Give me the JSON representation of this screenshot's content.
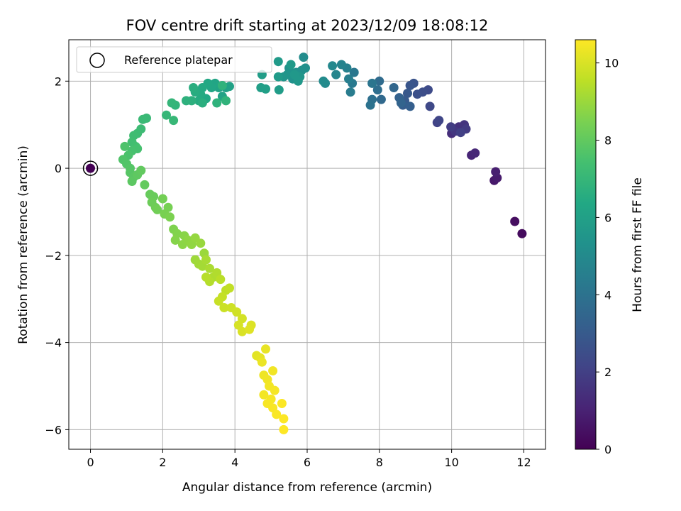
{
  "chart_data": {
    "type": "scatter",
    "title": "FOV centre drift starting at 2023/12/09 18:08:12",
    "xlabel": "Angular distance from reference (arcmin)",
    "ylabel": "Rotation from reference (arcmin)",
    "xlim": [
      -0.6,
      12.6
    ],
    "ylim": [
      -6.45,
      2.95
    ],
    "xticks": [
      0,
      2,
      4,
      6,
      8,
      10,
      12
    ],
    "yticks": [
      -6,
      -4,
      -2,
      0,
      2
    ],
    "grid": true,
    "legend": {
      "position": "top-left",
      "entries": [
        "Reference platepar"
      ]
    },
    "reference_point": {
      "x": 0,
      "y": 0
    },
    "colorbar": {
      "label": "Hours from first FF file",
      "colormap": "viridis",
      "range": [
        0,
        10.6
      ],
      "ticks": [
        0,
        2,
        4,
        6,
        8,
        10
      ]
    },
    "points": [
      [
        0,
        0,
        0.0
      ],
      [
        11.95,
        -1.5,
        0.3
      ],
      [
        11.75,
        -1.22,
        0.4
      ],
      [
        11.18,
        -0.28,
        0.7
      ],
      [
        11.26,
        -0.22,
        0.8
      ],
      [
        11.22,
        -0.08,
        0.9
      ],
      [
        10.55,
        0.3,
        1.1
      ],
      [
        10.65,
        0.35,
        1.2
      ],
      [
        10.0,
        0.8,
        1.4
      ],
      [
        10.2,
        0.95,
        1.5
      ],
      [
        10.35,
        1.0,
        1.6
      ],
      [
        10.1,
        0.85,
        1.7
      ],
      [
        10.4,
        0.9,
        1.8
      ],
      [
        9.98,
        0.95,
        1.9
      ],
      [
        10.25,
        0.82,
        2.0
      ],
      [
        9.6,
        1.05,
        2.1
      ],
      [
        9.65,
        1.1,
        2.2
      ],
      [
        9.4,
        1.42,
        2.3
      ],
      [
        9.35,
        1.8,
        2.4
      ],
      [
        9.2,
        1.75,
        2.5
      ],
      [
        9.05,
        1.7,
        2.6
      ],
      [
        8.95,
        1.95,
        2.7
      ],
      [
        8.85,
        1.9,
        2.8
      ],
      [
        8.78,
        1.72,
        2.9
      ],
      [
        8.7,
        1.55,
        3.0
      ],
      [
        8.65,
        1.45,
        3.1
      ],
      [
        8.85,
        1.42,
        3.2
      ],
      [
        8.55,
        1.62,
        3.3
      ],
      [
        8.6,
        1.5,
        3.4
      ],
      [
        8.4,
        1.85,
        3.5
      ],
      [
        8.05,
        1.58,
        3.6
      ],
      [
        8.0,
        2.0,
        3.7
      ],
      [
        7.95,
        1.8,
        3.8
      ],
      [
        7.8,
        1.58,
        3.9
      ],
      [
        7.75,
        1.45,
        4.0
      ],
      [
        7.8,
        1.95,
        4.1
      ],
      [
        7.3,
        2.2,
        4.2
      ],
      [
        7.25,
        1.95,
        4.3
      ],
      [
        7.2,
        1.75,
        4.4
      ],
      [
        7.15,
        2.05,
        4.5
      ],
      [
        7.1,
        2.3,
        4.6
      ],
      [
        6.95,
        2.38,
        4.7
      ],
      [
        6.8,
        2.15,
        4.8
      ],
      [
        6.7,
        2.35,
        4.9
      ],
      [
        6.5,
        1.95,
        5.0
      ],
      [
        6.45,
        2.0,
        5.05
      ],
      [
        5.9,
        2.55,
        5.1
      ],
      [
        5.95,
        2.3,
        5.2
      ],
      [
        5.85,
        2.25,
        5.25
      ],
      [
        5.7,
        2.2,
        5.3
      ],
      [
        5.6,
        2.05,
        5.35
      ],
      [
        5.5,
        2.3,
        5.4
      ],
      [
        5.45,
        2.15,
        5.45
      ],
      [
        5.35,
        2.1,
        5.5
      ],
      [
        5.8,
        2.1,
        5.55
      ],
      [
        5.75,
        2.0,
        5.6
      ],
      [
        5.65,
        2.15,
        5.62
      ],
      [
        5.55,
        2.38,
        5.65
      ],
      [
        5.2,
        2.45,
        5.7
      ],
      [
        5.2,
        2.1,
        5.75
      ],
      [
        5.22,
        1.8,
        5.8
      ],
      [
        4.75,
        2.15,
        5.85
      ],
      [
        4.72,
        1.85,
        5.9
      ],
      [
        4.85,
        1.82,
        5.95
      ],
      [
        3.75,
        1.85,
        6.0
      ],
      [
        3.85,
        1.88,
        6.05
      ],
      [
        3.65,
        1.65,
        6.1
      ],
      [
        3.55,
        1.85,
        6.15
      ],
      [
        3.45,
        1.95,
        6.2
      ],
      [
        3.35,
        1.85,
        6.25
      ],
      [
        3.25,
        1.95,
        6.3
      ],
      [
        3.2,
        1.6,
        6.35
      ],
      [
        3.1,
        1.85,
        6.4
      ],
      [
        3.05,
        1.7,
        6.45
      ],
      [
        3.0,
        1.55,
        6.5
      ],
      [
        2.9,
        1.75,
        6.55
      ],
      [
        2.85,
        1.85,
        6.6
      ],
      [
        3.1,
        1.5,
        6.65
      ],
      [
        2.8,
        1.55,
        6.7
      ],
      [
        2.65,
        1.55,
        6.75
      ],
      [
        3.5,
        1.5,
        6.8
      ],
      [
        3.75,
        1.55,
        6.82
      ],
      [
        3.65,
        1.9,
        6.84
      ],
      [
        2.35,
        1.45,
        6.9
      ],
      [
        2.25,
        1.5,
        6.95
      ],
      [
        2.1,
        1.22,
        7.0
      ],
      [
        2.3,
        1.1,
        7.05
      ],
      [
        1.55,
        1.15,
        7.1
      ],
      [
        1.45,
        1.12,
        7.15
      ],
      [
        1.4,
        0.9,
        7.2
      ],
      [
        1.3,
        0.8,
        7.25
      ],
      [
        1.2,
        0.75,
        7.3
      ],
      [
        1.15,
        0.6,
        7.35
      ],
      [
        1.25,
        0.5,
        7.4
      ],
      [
        1.3,
        0.45,
        7.45
      ],
      [
        1.15,
        0.4,
        7.5
      ],
      [
        1.05,
        0.3,
        7.55
      ],
      [
        0.95,
        0.5,
        7.6
      ],
      [
        0.9,
        0.2,
        7.65
      ],
      [
        1.0,
        0.1,
        7.7
      ],
      [
        1.1,
        0.0,
        7.75
      ],
      [
        1.1,
        -0.1,
        7.8
      ],
      [
        1.2,
        -0.2,
        7.85
      ],
      [
        1.15,
        -0.3,
        7.9
      ],
      [
        1.3,
        -0.15,
        7.95
      ],
      [
        1.4,
        -0.05,
        8.0
      ],
      [
        1.5,
        -0.38,
        8.05
      ],
      [
        1.65,
        -0.6,
        8.1
      ],
      [
        1.75,
        -0.65,
        8.15
      ],
      [
        1.7,
        -0.78,
        8.2
      ],
      [
        1.8,
        -0.9,
        8.25
      ],
      [
        1.85,
        -0.95,
        8.3
      ],
      [
        2.0,
        -0.7,
        8.35
      ],
      [
        2.15,
        -0.9,
        8.4
      ],
      [
        2.05,
        -1.05,
        8.45
      ],
      [
        2.2,
        -1.12,
        8.5
      ],
      [
        2.3,
        -1.4,
        8.55
      ],
      [
        2.4,
        -1.5,
        8.6
      ],
      [
        2.35,
        -1.65,
        8.65
      ],
      [
        2.6,
        -1.55,
        8.7
      ],
      [
        2.55,
        -1.75,
        8.75
      ],
      [
        2.7,
        -1.65,
        8.8
      ],
      [
        2.8,
        -1.75,
        8.85
      ],
      [
        2.9,
        -1.6,
        8.9
      ],
      [
        3.05,
        -1.72,
        8.95
      ],
      [
        3.15,
        -1.95,
        9.0
      ],
      [
        2.9,
        -2.1,
        9.05
      ],
      [
        3.0,
        -2.2,
        9.1
      ],
      [
        3.1,
        -2.25,
        9.15
      ],
      [
        3.2,
        -2.1,
        9.2
      ],
      [
        3.3,
        -2.3,
        9.25
      ],
      [
        3.4,
        -2.5,
        9.3
      ],
      [
        3.5,
        -2.4,
        9.35
      ],
      [
        3.3,
        -2.6,
        9.4
      ],
      [
        3.2,
        -2.5,
        9.45
      ],
      [
        3.6,
        -2.55,
        9.5
      ],
      [
        3.75,
        -2.8,
        9.55
      ],
      [
        3.85,
        -2.75,
        9.6
      ],
      [
        3.65,
        -2.95,
        9.65
      ],
      [
        3.55,
        -3.05,
        9.7
      ],
      [
        3.7,
        -3.2,
        9.75
      ],
      [
        3.9,
        -3.2,
        9.8
      ],
      [
        4.05,
        -3.3,
        9.85
      ],
      [
        4.2,
        -3.45,
        9.9
      ],
      [
        4.1,
        -3.6,
        9.95
      ],
      [
        4.2,
        -3.75,
        10.0
      ],
      [
        4.45,
        -3.6,
        10.05
      ],
      [
        4.4,
        -3.7,
        10.1
      ],
      [
        4.6,
        -4.3,
        10.15
      ],
      [
        4.7,
        -4.35,
        10.2
      ],
      [
        4.85,
        -4.15,
        10.25
      ],
      [
        4.75,
        -4.45,
        10.3
      ],
      [
        4.8,
        -4.75,
        10.35
      ],
      [
        4.9,
        -4.85,
        10.38
      ],
      [
        5.05,
        -4.65,
        10.4
      ],
      [
        4.95,
        -5.0,
        10.42
      ],
      [
        4.8,
        -5.2,
        10.44
      ],
      [
        5.1,
        -5.1,
        10.46
      ],
      [
        5.0,
        -5.3,
        10.48
      ],
      [
        4.9,
        -5.4,
        10.5
      ],
      [
        5.05,
        -5.5,
        10.52
      ],
      [
        5.15,
        -5.65,
        10.54
      ],
      [
        5.3,
        -5.4,
        10.56
      ],
      [
        5.35,
        -5.75,
        10.58
      ],
      [
        5.35,
        -6.0,
        10.6
      ]
    ]
  }
}
